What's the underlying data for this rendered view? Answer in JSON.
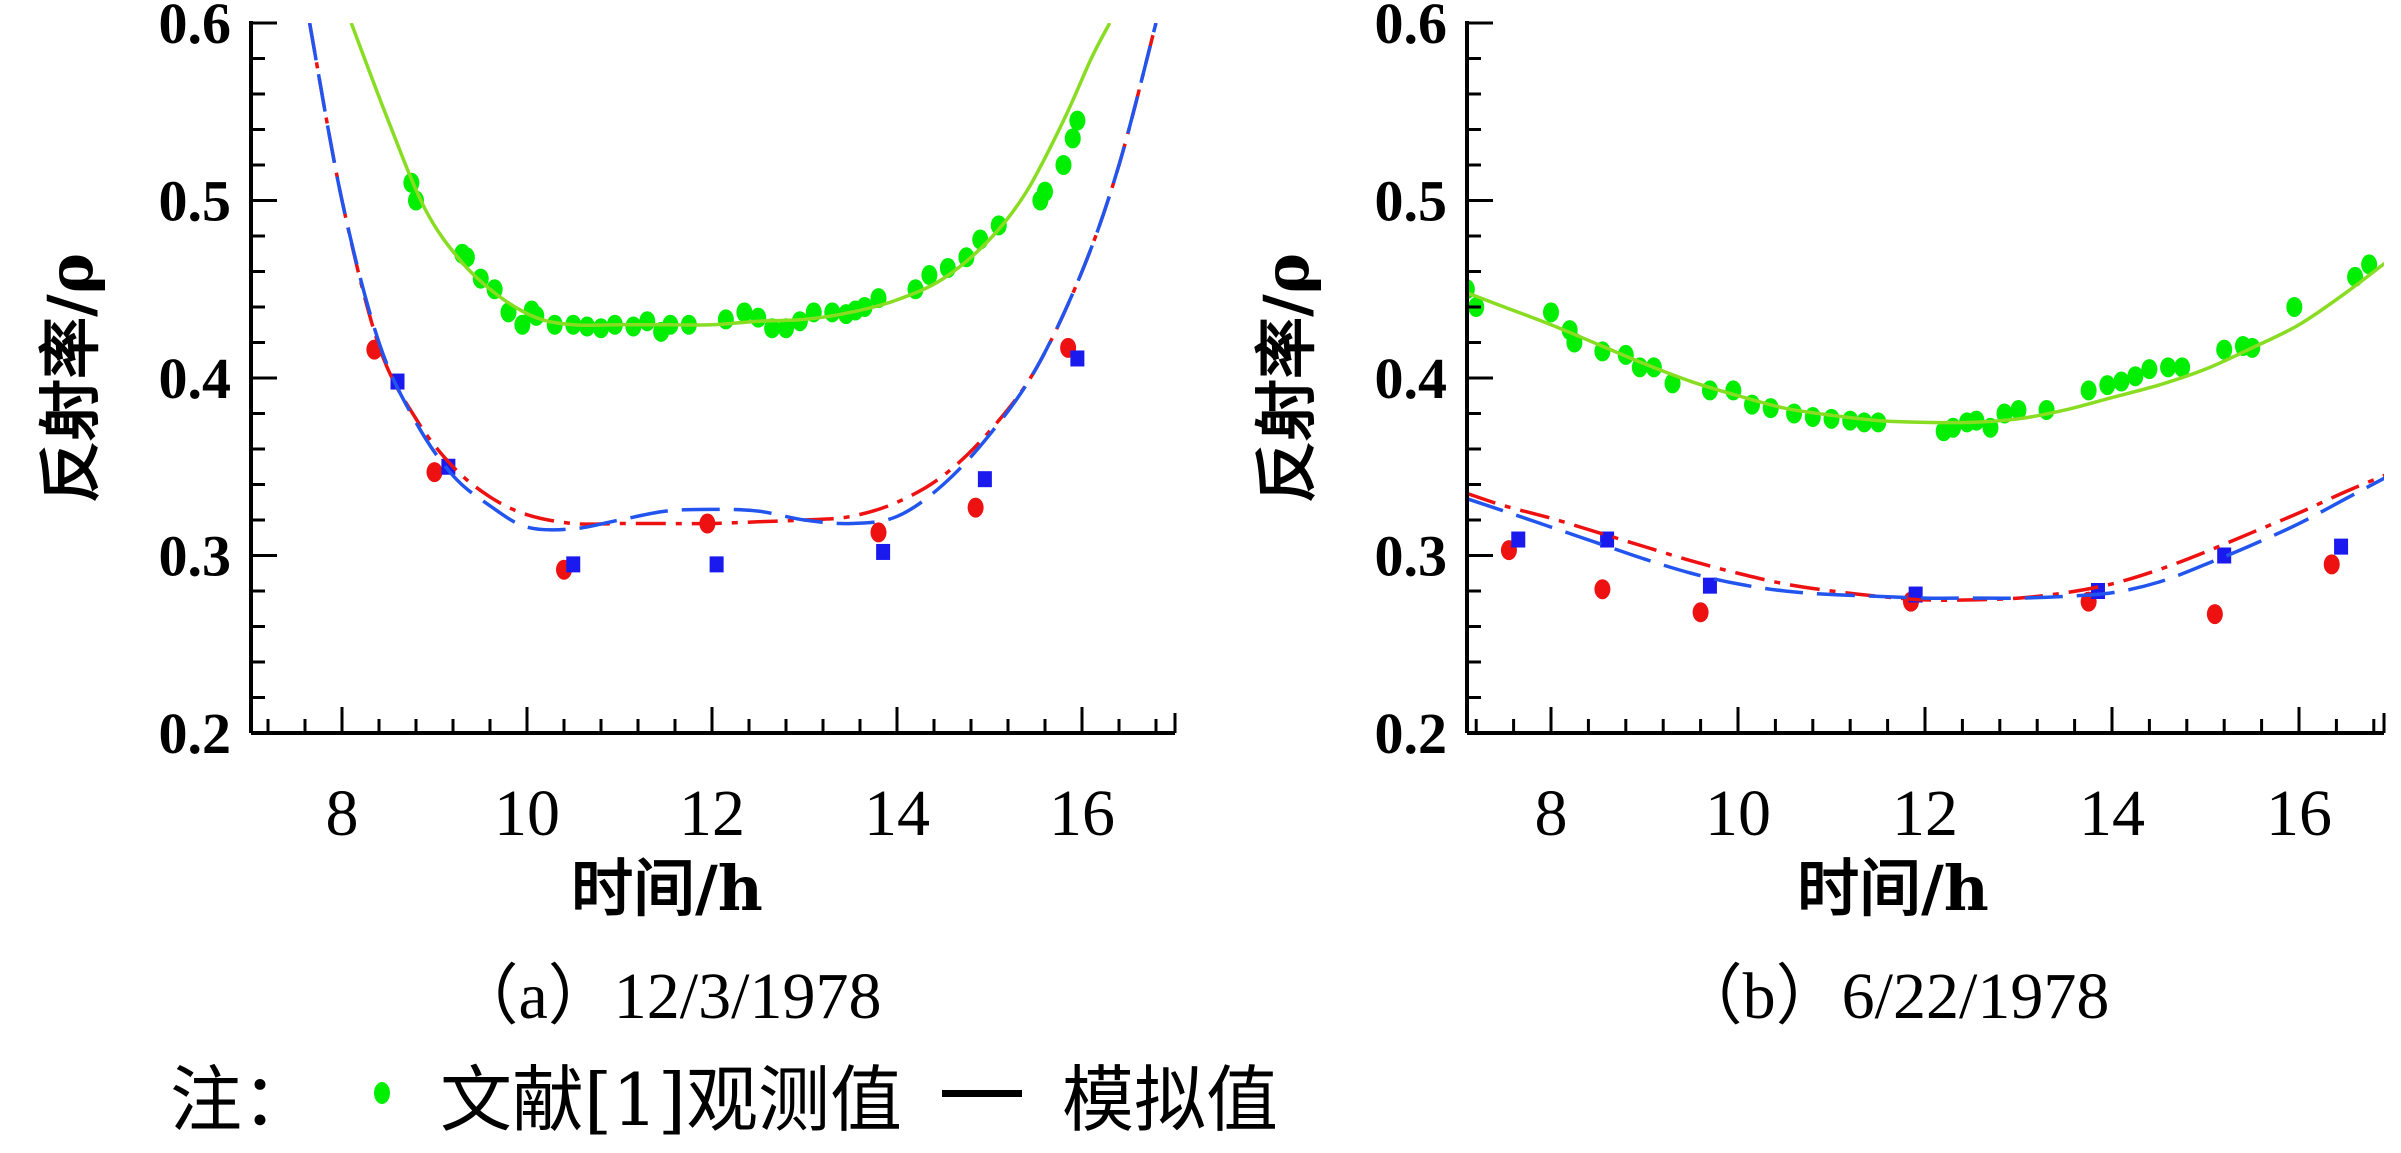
{
  "figure": {
    "legend": {
      "note_label": "注：",
      "observed_label": "文献[1]观测值",
      "simulated_label": "模拟值",
      "observed_marker_color": "#00ee00",
      "simulated_marker": "line"
    }
  },
  "chart_data": [
    {
      "type": "scatter",
      "panel": "a",
      "caption": "（a）12/3/1978",
      "xlabel": "时间/h",
      "ylabel": "反射率/ρ",
      "xlim": [
        7.35,
        17.0
      ],
      "ylim": [
        0.2,
        0.6
      ],
      "xticks": [
        8,
        10,
        12,
        14,
        16
      ],
      "yticks": [
        0.2,
        0.3,
        0.4,
        0.5,
        0.6
      ],
      "xtick_labels": [
        "8",
        "10",
        "12",
        "14",
        "16"
      ],
      "ytick_labels": [
        "0.2",
        "0.3",
        "0.4",
        "0.5",
        "0.6"
      ],
      "grid": false,
      "series": [
        {
          "name": "观测值 (绿)",
          "kind": "points",
          "color": "#00ee00",
          "marker": "circle",
          "x": [
            8.75,
            8.8,
            9.3,
            9.35,
            9.5,
            9.65,
            9.8,
            9.95,
            10.05,
            10.1,
            10.3,
            10.5,
            10.65,
            10.8,
            10.95,
            11.15,
            11.3,
            11.45,
            11.55,
            11.75,
            12.15,
            12.35,
            12.5,
            12.65,
            12.8,
            12.95,
            13.1,
            13.3,
            13.45,
            13.55,
            13.65,
            13.8,
            14.2,
            14.35,
            14.55,
            14.75,
            14.9,
            15.1,
            15.55,
            15.6,
            15.8,
            15.9,
            15.95
          ],
          "y": [
            0.51,
            0.5,
            0.47,
            0.468,
            0.456,
            0.45,
            0.437,
            0.43,
            0.438,
            0.435,
            0.43,
            0.43,
            0.429,
            0.428,
            0.43,
            0.429,
            0.432,
            0.426,
            0.43,
            0.43,
            0.433,
            0.437,
            0.434,
            0.428,
            0.428,
            0.432,
            0.437,
            0.437,
            0.436,
            0.438,
            0.44,
            0.445,
            0.45,
            0.458,
            0.462,
            0.468,
            0.478,
            0.486,
            0.5,
            0.505,
            0.52,
            0.535,
            0.545
          ]
        },
        {
          "name": "模拟值 (绿)",
          "kind": "line",
          "color": "#88dd22",
          "style": "solid",
          "x": [
            8.1,
            8.5,
            8.9,
            9.3,
            9.7,
            10.1,
            10.5,
            11.0,
            11.5,
            12.0,
            12.5,
            13.0,
            13.5,
            14.0,
            14.5,
            15.0,
            15.4,
            15.8,
            16.1,
            16.3
          ],
          "y": [
            0.6,
            0.545,
            0.495,
            0.465,
            0.446,
            0.434,
            0.43,
            0.43,
            0.43,
            0.43,
            0.432,
            0.433,
            0.437,
            0.444,
            0.456,
            0.478,
            0.505,
            0.545,
            0.58,
            0.6
          ]
        },
        {
          "name": "观测值 (红)",
          "kind": "points",
          "color": "#ee1111",
          "marker": "circle",
          "x": [
            8.35,
            9.0,
            10.4,
            11.95,
            13.8,
            14.85,
            15.85
          ],
          "y": [
            0.416,
            0.347,
            0.292,
            0.318,
            0.313,
            0.327,
            0.417
          ]
        },
        {
          "name": "观测值 (蓝)",
          "kind": "points",
          "color": "#1a1aee",
          "marker": "square",
          "x": [
            8.6,
            9.15,
            10.5,
            12.05,
            13.85,
            14.95,
            15.95
          ],
          "y": [
            0.398,
            0.35,
            0.295,
            0.295,
            0.302,
            0.343,
            0.411
          ]
        },
        {
          "name": "模拟值 (红)",
          "kind": "line",
          "color": "#ee1111",
          "style": "dashdot",
          "x": [
            7.65,
            8.0,
            8.4,
            8.8,
            9.2,
            9.6,
            10.0,
            10.5,
            11.0,
            11.5,
            12.0,
            12.5,
            13.0,
            13.5,
            14.0,
            14.5,
            15.0,
            15.5,
            16.0,
            16.4,
            16.8
          ],
          "y": [
            0.6,
            0.5,
            0.418,
            0.377,
            0.35,
            0.333,
            0.323,
            0.318,
            0.318,
            0.318,
            0.318,
            0.319,
            0.32,
            0.322,
            0.33,
            0.345,
            0.37,
            0.405,
            0.46,
            0.52,
            0.6
          ]
        },
        {
          "name": "模拟值 (蓝)",
          "kind": "line",
          "color": "#2255ee",
          "style": "dashed",
          "x": [
            7.65,
            8.0,
            8.4,
            8.8,
            9.2,
            9.6,
            10.0,
            10.5,
            11.0,
            11.5,
            12.0,
            12.5,
            13.0,
            13.5,
            14.0,
            14.5,
            15.0,
            15.5,
            16.0,
            16.4,
            16.8
          ],
          "y": [
            0.6,
            0.5,
            0.42,
            0.375,
            0.345,
            0.328,
            0.316,
            0.315,
            0.32,
            0.325,
            0.326,
            0.325,
            0.32,
            0.318,
            0.322,
            0.34,
            0.368,
            0.405,
            0.46,
            0.52,
            0.6
          ]
        }
      ]
    },
    {
      "type": "scatter",
      "panel": "b",
      "caption": "（b）6/22/1978",
      "xlabel": "时间/h",
      "ylabel": "反射率/ρ",
      "xlim": [
        7.1,
        17.0
      ],
      "ylim": [
        0.2,
        0.6
      ],
      "xticks": [
        8,
        10,
        12,
        14,
        16
      ],
      "yticks": [
        0.2,
        0.3,
        0.4,
        0.5,
        0.6
      ],
      "xtick_labels": [
        "8",
        "10",
        "12",
        "14",
        "16"
      ],
      "ytick_labels": [
        "0.2",
        "0.3",
        "0.4",
        "0.5",
        "0.6"
      ],
      "grid": false,
      "series": [
        {
          "name": "观测值 (绿)",
          "kind": "points",
          "color": "#00ee00",
          "marker": "circle",
          "x": [
            7.1,
            7.2,
            8.0,
            8.2,
            8.25,
            8.55,
            8.8,
            8.95,
            9.1,
            9.3,
            9.7,
            9.95,
            10.15,
            10.35,
            10.6,
            10.8,
            11.0,
            11.2,
            11.35,
            11.5,
            12.2,
            12.3,
            12.45,
            12.55,
            12.7,
            12.85,
            13.0,
            13.3,
            13.75,
            13.95,
            14.1,
            14.25,
            14.4,
            14.6,
            14.75,
            15.2,
            15.4,
            15.5,
            15.95,
            16.6,
            16.75
          ],
          "y": [
            0.45,
            0.44,
            0.437,
            0.427,
            0.42,
            0.415,
            0.413,
            0.406,
            0.406,
            0.397,
            0.393,
            0.393,
            0.385,
            0.383,
            0.38,
            0.378,
            0.377,
            0.376,
            0.375,
            0.375,
            0.37,
            0.372,
            0.375,
            0.376,
            0.372,
            0.38,
            0.382,
            0.382,
            0.393,
            0.396,
            0.398,
            0.401,
            0.405,
            0.406,
            0.406,
            0.416,
            0.418,
            0.417,
            0.44,
            0.457,
            0.464
          ]
        },
        {
          "name": "模拟值 (绿)",
          "kind": "line",
          "color": "#88dd22",
          "style": "solid",
          "x": [
            7.1,
            7.5,
            8.0,
            8.5,
            9.0,
            9.5,
            10.0,
            10.5,
            11.0,
            11.5,
            12.0,
            12.5,
            13.0,
            13.5,
            14.0,
            14.5,
            15.0,
            15.5,
            16.0,
            16.5,
            17.0
          ],
          "y": [
            0.448,
            0.44,
            0.43,
            0.419,
            0.408,
            0.398,
            0.39,
            0.383,
            0.379,
            0.376,
            0.375,
            0.375,
            0.377,
            0.382,
            0.389,
            0.396,
            0.405,
            0.417,
            0.43,
            0.448,
            0.468
          ]
        },
        {
          "name": "观测值 (红)",
          "kind": "points",
          "color": "#ee1111",
          "marker": "circle",
          "x": [
            7.55,
            8.55,
            9.6,
            11.85,
            13.75,
            15.1,
            16.35
          ],
          "y": [
            0.303,
            0.281,
            0.268,
            0.274,
            0.274,
            0.267,
            0.295
          ]
        },
        {
          "name": "观测值 (蓝)",
          "kind": "points",
          "color": "#1a1aee",
          "marker": "square",
          "x": [
            7.65,
            8.6,
            9.7,
            11.9,
            13.85,
            15.2,
            16.45
          ],
          "y": [
            0.309,
            0.309,
            0.283,
            0.278,
            0.28,
            0.3,
            0.305
          ]
        },
        {
          "name": "模拟值 (红)",
          "kind": "line",
          "color": "#ee1111",
          "style": "dashdot",
          "x": [
            7.1,
            7.5,
            8.0,
            8.5,
            9.0,
            9.5,
            10.0,
            10.5,
            11.0,
            11.5,
            12.0,
            12.5,
            13.0,
            13.5,
            14.0,
            14.5,
            15.0,
            15.5,
            16.0,
            16.5,
            17.0
          ],
          "y": [
            0.335,
            0.328,
            0.321,
            0.313,
            0.305,
            0.297,
            0.29,
            0.284,
            0.28,
            0.277,
            0.275,
            0.275,
            0.276,
            0.279,
            0.284,
            0.292,
            0.302,
            0.313,
            0.324,
            0.336,
            0.347
          ]
        },
        {
          "name": "模拟值 (蓝)",
          "kind": "line",
          "color": "#2255ee",
          "style": "dashed",
          "x": [
            7.1,
            7.5,
            8.0,
            8.5,
            9.0,
            9.5,
            10.0,
            10.5,
            11.0,
            11.5,
            12.0,
            12.5,
            13.0,
            13.5,
            14.0,
            14.5,
            15.0,
            15.5,
            16.0,
            16.5,
            17.0
          ],
          "y": [
            0.332,
            0.325,
            0.316,
            0.307,
            0.298,
            0.29,
            0.284,
            0.28,
            0.278,
            0.277,
            0.276,
            0.276,
            0.276,
            0.277,
            0.279,
            0.285,
            0.295,
            0.306,
            0.318,
            0.332,
            0.346
          ]
        }
      ]
    }
  ]
}
